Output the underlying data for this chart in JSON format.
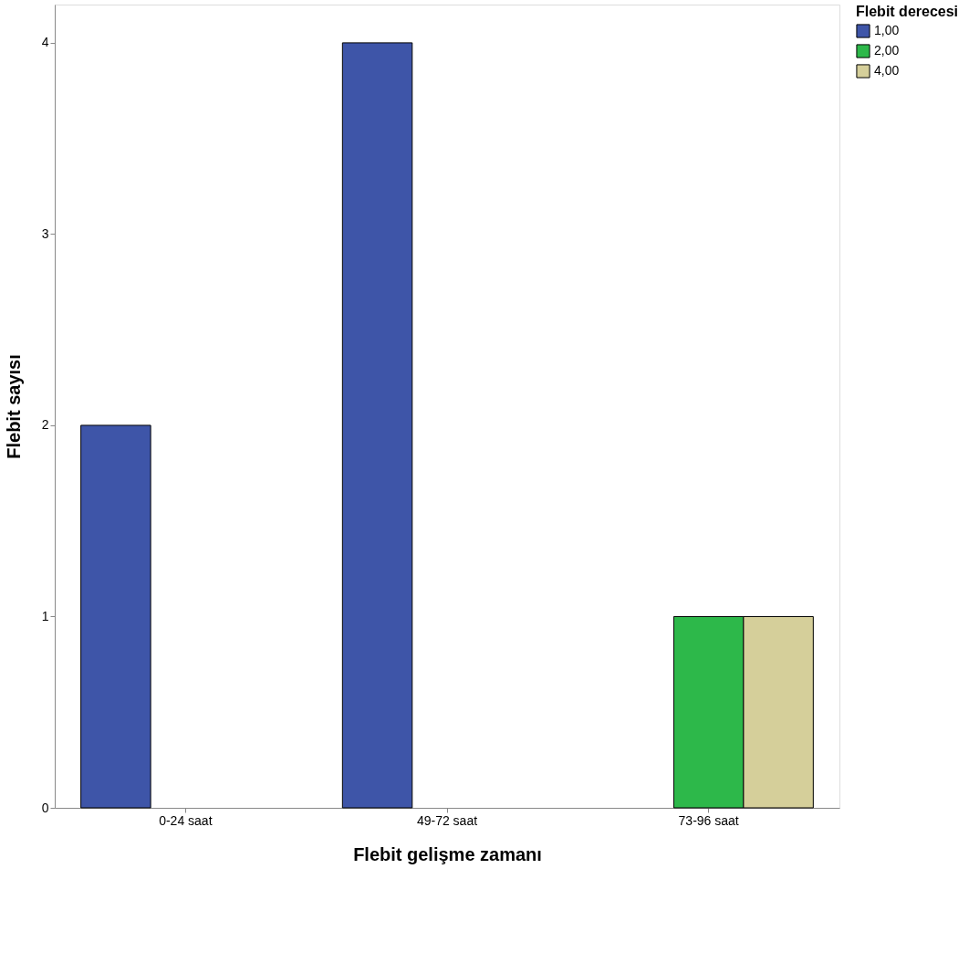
{
  "chart_data": {
    "type": "bar",
    "xlabel": "Flebit gelişme zamanı",
    "ylabel": "Flebit sayısı",
    "legend_title": "Flebit derecesi",
    "categories": [
      "0-24 saat",
      "49-72 saat",
      "73-96 saat"
    ],
    "series": [
      {
        "name": "1,00",
        "color": "#3e55a8",
        "values": [
          2,
          4,
          null
        ]
      },
      {
        "name": "2,00",
        "color": "#2db84a",
        "values": [
          null,
          null,
          1
        ]
      },
      {
        "name": "4,00",
        "color": "#d5cf9a",
        "values": [
          null,
          null,
          1
        ]
      }
    ],
    "ylim": [
      0,
      4.2
    ],
    "yticks": [
      0,
      1,
      2,
      3,
      4
    ],
    "grid": false,
    "legend": "top right"
  }
}
